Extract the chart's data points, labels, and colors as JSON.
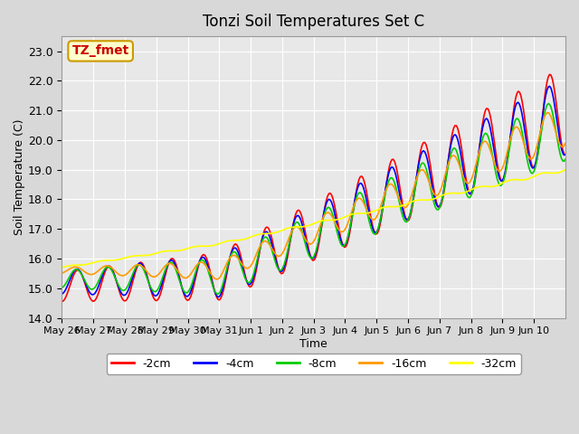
{
  "title": "Tonzi Soil Temperatures Set C",
  "xlabel": "Time",
  "ylabel": "Soil Temperature (C)",
  "ylim": [
    14.0,
    23.5
  ],
  "yticks": [
    14.0,
    15.0,
    16.0,
    17.0,
    18.0,
    19.0,
    20.0,
    21.0,
    22.0,
    23.0
  ],
  "series_colors": [
    "#ff0000",
    "#0000ff",
    "#00cc00",
    "#ff9900",
    "#ffff00"
  ],
  "series_labels": [
    "-2cm",
    "-4cm",
    "-8cm",
    "-16cm",
    "-32cm"
  ],
  "annotation_text": "TZ_fmet",
  "annotation_color": "#cc0000",
  "annotation_bg": "#ffffcc",
  "annotation_edge": "#cc9900",
  "fig_bg": "#d8d8d8",
  "plot_bg": "#e8e8e8",
  "grid_color": "#ffffff",
  "x_tick_labels": [
    "May 26",
    "May 27",
    "May 28",
    "May 29",
    "May 30",
    "May 31",
    "Jun 1",
    "Jun 2",
    "Jun 3",
    "Jun 4",
    "Jun 5",
    "Jun 6",
    "Jun 7",
    "Jun 8",
    "Jun 9",
    "Jun 10"
  ],
  "n_days": 16
}
